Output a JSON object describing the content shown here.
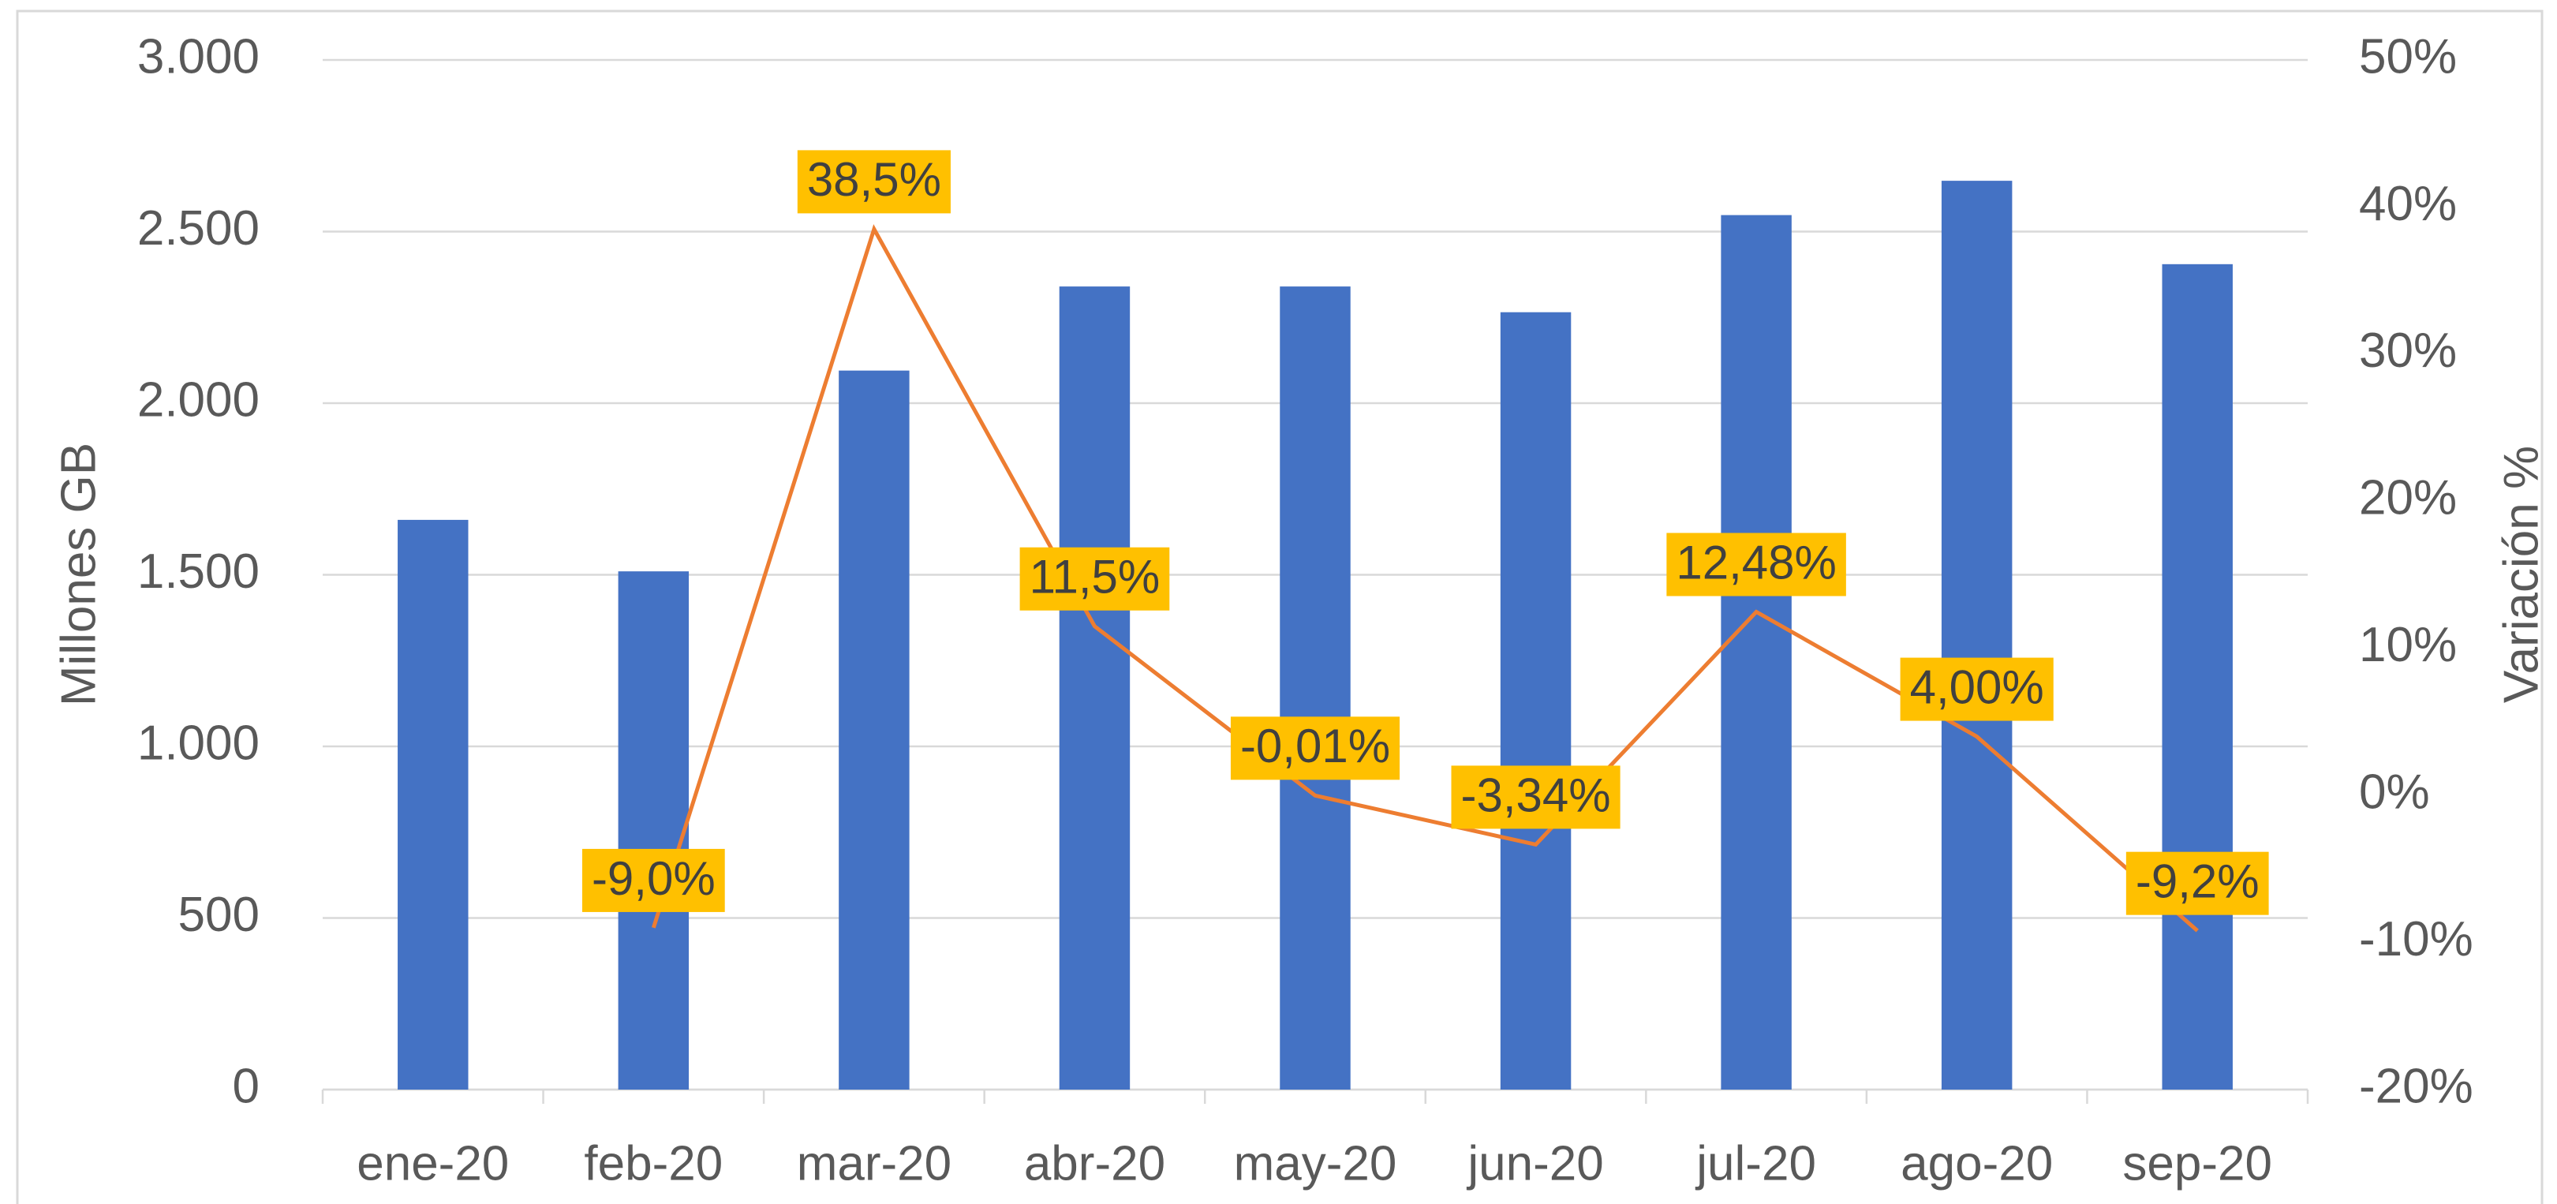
{
  "chart_data": {
    "type": "bar-line",
    "ylabel": "Millones GB",
    "y2label": "Variación %",
    "categories": [
      "ene-20",
      "feb-20",
      "mar-20",
      "abr-20",
      "may-20",
      "jun-20",
      "jul-20",
      "ago-20",
      "sep-20"
    ],
    "series": [
      {
        "type": "bar",
        "color": "#4472c4",
        "values": [
          1660,
          1510,
          2095,
          2340,
          2340,
          2265,
          2548,
          2648,
          2405
        ]
      },
      {
        "type": "line",
        "axis": "y2",
        "color": "#ed7d31",
        "label_color": "#ffc000",
        "values": [
          null,
          -9.0,
          38.5,
          11.5,
          -0.01,
          -3.34,
          12.48,
          4.0,
          -9.2
        ],
        "value_labels": [
          null,
          "-9,0%",
          "38,5%",
          "11,5%",
          "-0,01%",
          "-3,34%",
          "12,48%",
          "4,00%",
          "-9,2%"
        ]
      }
    ],
    "ylim": [
      0,
      3000
    ],
    "yticks": [
      0,
      500,
      {
        "value": 1000,
        "label": "1.000"
      },
      {
        "value": 1500,
        "label": "1.500"
      },
      {
        "value": 2000,
        "label": "2.000"
      },
      {
        "value": 2500,
        "label": "2.500"
      },
      {
        "value": 3000,
        "label": "3.000"
      }
    ],
    "y2lim": [
      -20,
      50
    ],
    "y2ticks": [
      {
        "value": -20,
        "label": "-20%"
      },
      {
        "value": -10,
        "label": "-10%"
      },
      {
        "value": 0,
        "label": "0%"
      },
      {
        "value": 10,
        "label": "10%"
      },
      {
        "value": 20,
        "label": "20%"
      },
      {
        "value": 30,
        "label": "30%"
      },
      {
        "value": 40,
        "label": "40%"
      },
      {
        "value": 50,
        "label": "50%"
      }
    ],
    "grid": true
  }
}
